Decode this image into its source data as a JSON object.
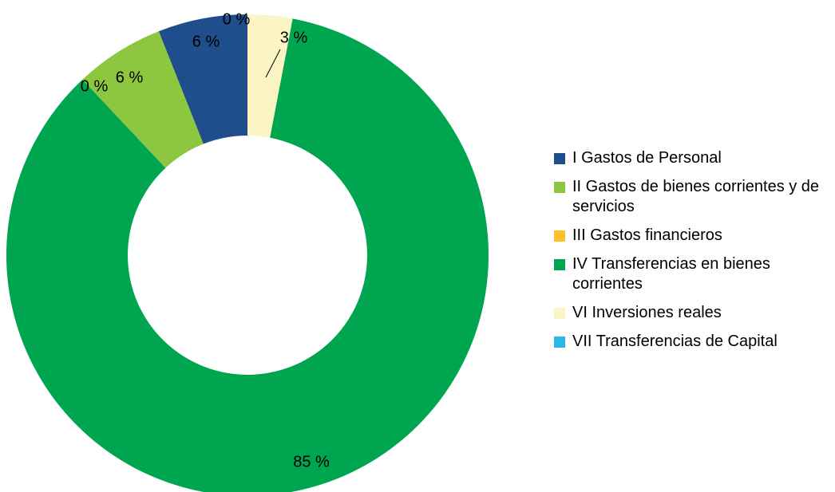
{
  "chart_data": {
    "type": "donut",
    "categories": [
      "I Gastos de Personal",
      "II Gastos de bienes corrientes y de servicios",
      "III Gastos financieros",
      "IV Transferencias en bienes corrientes",
      "VI Inversiones reales",
      "VII Transferencias de Capital"
    ],
    "values": [
      6,
      6,
      0,
      85,
      3,
      0
    ],
    "value_labels": [
      "6 %",
      "6 %",
      "0 %",
      "85 %",
      "3 %",
      "0 %"
    ],
    "colors": [
      "#1f4e8c",
      "#8dc63f",
      "#fcc22d",
      "#00a54f",
      "#fbf5c3",
      "#2bb7ea"
    ]
  }
}
